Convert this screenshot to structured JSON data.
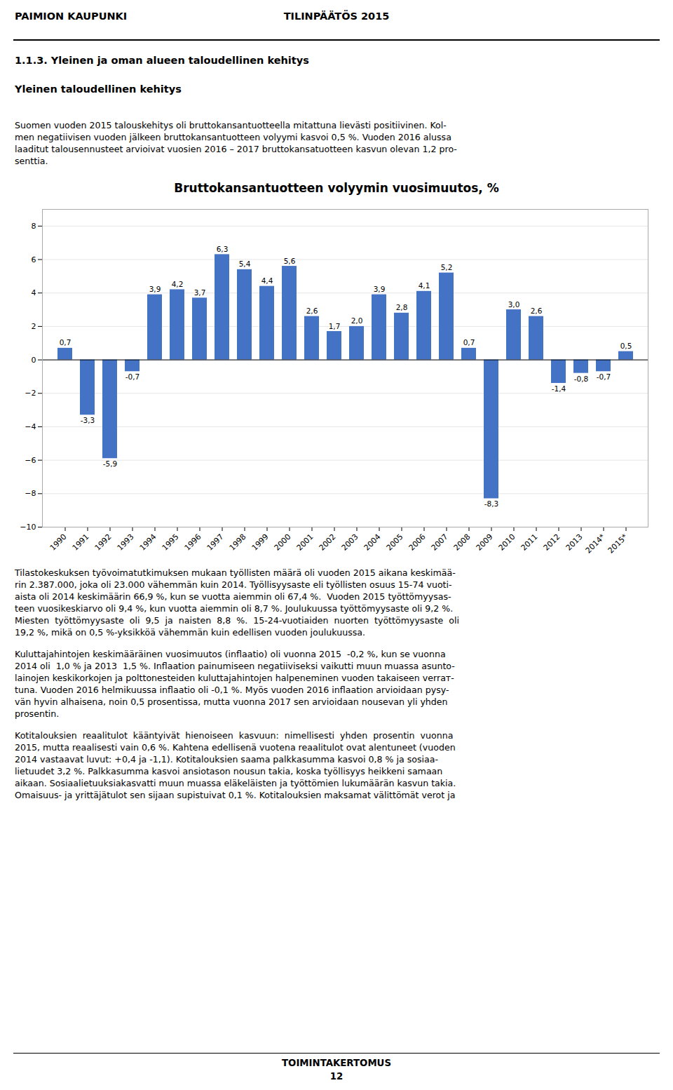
{
  "header_left": "PAIMION KAUPUNKI",
  "header_right": "TILINPÄÄTÖS 2015",
  "section_title": "1.1.3. Yleinen ja oman alueen taloudellinen kehitys",
  "subsection_title": "Yleinen taloudellinen kehitys",
  "body_text_1_lines": [
    "Suomen vuoden 2015 talouskehitys oli bruttokansantuotteella mitattuna lievästi positiivinen. Kol-",
    "men negatiivisen vuoden jälkeen bruttokansantuotteen volyymi kasvoi 0,5 %. Vuoden 2016 alussa",
    "laaditut talousennusteet arvioivat vuosien 2016 – 2017 bruttokansatuotteen kasvun olevan 1,2 pro-",
    "senttia."
  ],
  "body_text_2_lines": [
    "Tilastokeskuksen työvoimatutkimuksen mukaan työllisten määrä oli vuoden 2015 aikana keskimää-",
    "rin 2.387.000, joka oli 23.000 vähemmän kuin 2014. Työllisyysaste eli työllisten osuus 15-74 vuoti-",
    "aista oli 2014 keskimäärin 66,9 %, kun se vuotta aiemmin oli 67,4 %.  Vuoden 2015 työttömyysas-",
    "teen vuosikeskiarvo oli 9,4 %, kun vuotta aiemmin oli 8,7 %. Joulukuussa työttömyysaste oli 9,2 %.",
    "Miesten  työttömyysaste  oli  9,5  ja  naisten  8,8  %.  15-24-vuotiaiden  nuorten  työttömyysaste  oli",
    "19,2 %, mikä on 0,5 %-yksikköä vähemmän kuin edellisen vuoden joulukuussa."
  ],
  "body_text_3_lines": [
    "Kuluttajahintojen keskimääräinen vuosimuutos (inflaatio) oli vuonna 2015  -0,2 %, kun se vuonna",
    "2014 oli  1,0 % ja 2013  1,5 %. Inflaation painumiseen negatiiviseksi vaikutti muun muassa asunto-",
    "lainojen keskikorkojen ja polttonesteiden kuluttajahintojen halpeneminen vuoden takaiseen verrат-",
    "tuna. Vuoden 2016 helmikuussa inflaatio oli -0,1 %. Myös vuoden 2016 inflaation arvioidaan pysy-",
    "vän hyvin alhaisena, noin 0,5 prosentissa, mutta vuonna 2017 sen arvioidaan nousevan yli yhden",
    "prosentin."
  ],
  "body_text_4_lines": [
    "Kotitalouksien  reaalitulot  kääntyivät  hienoiseen  kasvuun:  nimellisesti  yhden  prosentin  vuonna",
    "2015, mutta reaalisesti vain 0,6 %. Kahtena edellisenä vuotena reaalitulot ovat alentuneet (vuoden",
    "2014 vastaavat luvut: +0,4 ja -1,1). Kotitalouksien saama palkkasumma kasvoi 0,8 % ja sosiaa-",
    "lietuudet 3,2 %. Palkkasumma kasvoi ansiotason nousun takia, koska työllisyys heikkeni samaan",
    "aikaan. Sosiaalietuuksiakasvatti muun muassa eläkeläisten ja työttömien lukumäärän kasvun takia.",
    "Omaisuus- ja yrittäjätulot sen sijaan supistuivat 0,1 %. Kotitalouksien maksamat välittömät verot ja"
  ],
  "footer_center": "TOIMINTAKERTOMUS",
  "footer_page": "12",
  "chart_data": {
    "type": "bar",
    "title": "Bruttokansantuotteen volyymin vuosimuutos, %",
    "categories": [
      "1990",
      "1991",
      "1992",
      "1993",
      "1994",
      "1995",
      "1996",
      "1997",
      "1998",
      "1999",
      "2000",
      "2001",
      "2002",
      "2003",
      "2004",
      "2005",
      "2006",
      "2007",
      "2008",
      "2009",
      "2010",
      "2011",
      "2012",
      "2013",
      "2014*",
      "2015*"
    ],
    "values": [
      0.7,
      -3.3,
      -5.9,
      -0.7,
      3.9,
      4.2,
      3.7,
      6.3,
      5.4,
      4.4,
      5.6,
      2.6,
      1.7,
      2.0,
      3.9,
      2.8,
      4.1,
      5.2,
      0.7,
      -8.3,
      3.0,
      2.6,
      -1.4,
      -0.8,
      -0.7,
      0.5
    ],
    "value_labels": [
      "0,7",
      "-3,3",
      "-5,9",
      "-0,7",
      "3,9",
      "4,2",
      "3,7",
      "6,3",
      "5,4",
      "4,4",
      "5,6",
      "2,6",
      "1,7",
      "2,0",
      "3,9",
      "2,8",
      "4,1",
      "5,2",
      "0,7",
      "-8,3",
      "3,0",
      "2,6",
      "-1,4",
      "-0,8",
      "-0,7",
      "0,5"
    ],
    "color": "#4472C4",
    "ylim": [
      -10,
      9
    ],
    "yticks": [
      -10,
      -8,
      -6,
      -4,
      -2,
      0,
      2,
      4,
      6,
      8
    ],
    "grid": true,
    "data_labels": true
  }
}
